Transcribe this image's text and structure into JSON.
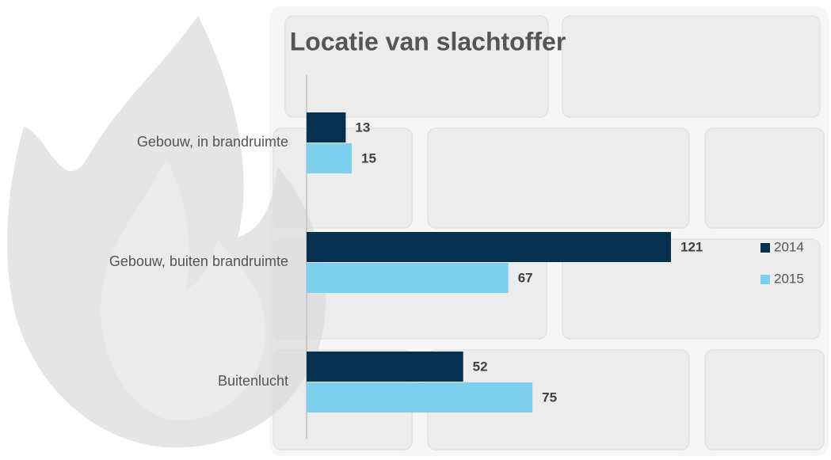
{
  "chart_data": {
    "type": "bar",
    "title": "Locatie van slachtoffer",
    "categories": [
      "Gebouw, in brandruimte",
      "Gebouw, buiten brandruimte",
      "Buitenlucht"
    ],
    "series": [
      {
        "name": "2014",
        "color": "#06304f",
        "values": [
          13,
          121,
          52
        ]
      },
      {
        "name": "2015",
        "color": "#7dcff0",
        "values": [
          15,
          67,
          75
        ]
      }
    ]
  }
}
